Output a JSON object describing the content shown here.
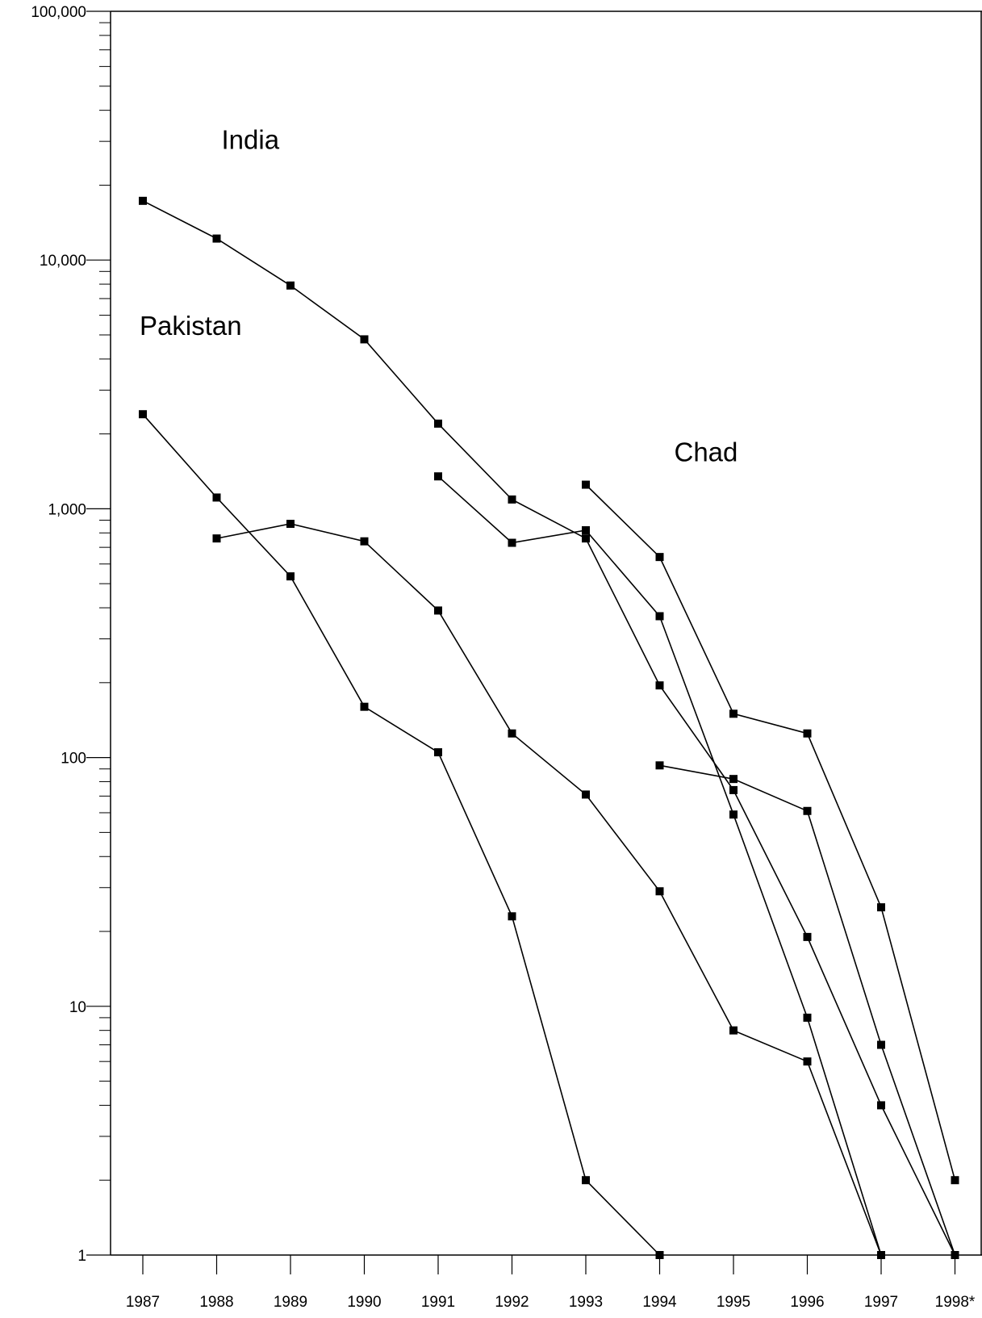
{
  "chart_data": {
    "type": "line",
    "title": "",
    "xlabel": "",
    "ylabel": "",
    "y_scale": "log",
    "ylim": [
      1,
      100000
    ],
    "grid": false,
    "legend": "none",
    "categories": [
      "1987",
      "1988",
      "1989",
      "1990",
      "1991",
      "1992",
      "1993",
      "1994",
      "1995",
      "1996",
      "1997",
      "1998*"
    ],
    "y_ticks": [
      {
        "value": 1,
        "label": "1"
      },
      {
        "value": 10,
        "label": "10"
      },
      {
        "value": 100,
        "label": "100"
      },
      {
        "value": 1000,
        "label": "1,000"
      },
      {
        "value": 10000,
        "label": "10,000"
      },
      {
        "value": 100000,
        "label": "100,000"
      }
    ],
    "annotations": [
      {
        "text": "India",
        "category": "1988",
        "y": 28000
      },
      {
        "text": "Pakistan",
        "category": "1987",
        "y": 5000
      },
      {
        "text": "Chad",
        "category": "1994",
        "y": 1550
      }
    ],
    "series": [
      {
        "values": [
          17300,
          12200,
          7900,
          4800,
          2200,
          1090,
          760,
          195,
          74,
          19,
          4,
          1
        ]
      },
      {
        "values": [
          2400,
          1110,
          535,
          160,
          105,
          23,
          2,
          1,
          null,
          null,
          null,
          null
        ]
      },
      {
        "values": [
          null,
          760,
          870,
          740,
          390,
          125,
          71,
          29,
          8,
          6,
          1,
          null
        ]
      },
      {
        "values": [
          null,
          null,
          null,
          null,
          1350,
          730,
          820,
          370,
          59,
          9,
          1,
          null
        ]
      },
      {
        "values": [
          null,
          null,
          null,
          null,
          null,
          null,
          1250,
          640,
          150,
          125,
          25,
          2
        ]
      },
      {
        "values": [
          null,
          null,
          null,
          null,
          null,
          null,
          null,
          93,
          82,
          61,
          7,
          1
        ]
      }
    ],
    "colors": {
      "line": "#000000",
      "marker": "#000000",
      "axis": "#000000"
    },
    "marker": "square"
  }
}
